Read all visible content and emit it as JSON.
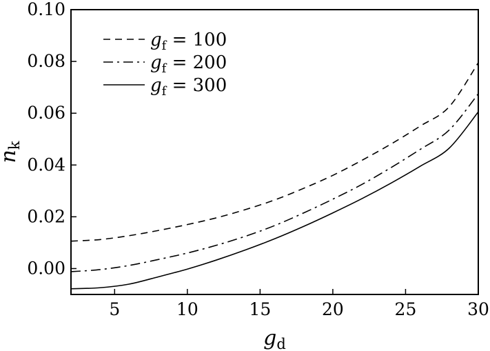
{
  "chart_data": {
    "type": "line",
    "title": "",
    "xlabel": {
      "base": "g",
      "sub": "d"
    },
    "ylabel": {
      "base": "n",
      "sub": "k"
    },
    "xlim": [
      2,
      30
    ],
    "ylim": [
      -0.01,
      0.1
    ],
    "xticks": [
      5,
      10,
      15,
      20,
      25,
      30
    ],
    "xtick_labels": [
      "5",
      "10",
      "15",
      "20",
      "25",
      "30"
    ],
    "yticks": [
      0.0,
      0.02,
      0.04,
      0.06,
      0.08,
      0.1
    ],
    "ytick_labels": [
      "0.00",
      "0.02",
      "0.04",
      "0.06",
      "0.08",
      "0.10"
    ],
    "grid": false,
    "legend_position": "top-left",
    "series": [
      {
        "name": "g_f = 100",
        "label": {
          "base": "g",
          "sub": "f",
          "rest": " = 100"
        },
        "line_style": "dashed",
        "x": [
          2,
          4,
          6,
          8,
          10,
          12,
          14,
          16,
          18,
          20,
          22,
          24,
          26,
          28,
          30
        ],
        "y": [
          0.0106,
          0.0112,
          0.0127,
          0.0147,
          0.017,
          0.0196,
          0.0228,
          0.0265,
          0.031,
          0.036,
          0.0418,
          0.0481,
          0.055,
          0.0625,
          0.0795
        ]
      },
      {
        "name": "g_f = 200",
        "label": {
          "base": "g",
          "sub": "f",
          "rest": " = 200"
        },
        "line_style": "dashdot",
        "x": [
          2,
          4,
          6,
          8,
          10,
          12,
          14,
          16,
          18,
          20,
          22,
          24,
          26,
          28,
          30
        ],
        "y": [
          -0.0012,
          -0.0004,
          0.0012,
          0.0035,
          0.006,
          0.009,
          0.0125,
          0.0166,
          0.0215,
          0.0268,
          0.0325,
          0.039,
          0.046,
          0.0535,
          0.0675
        ]
      },
      {
        "name": "g_f = 300",
        "label": {
          "base": "g",
          "sub": "f",
          "rest": " = 300"
        },
        "line_style": "solid",
        "x": [
          2,
          4,
          6,
          8,
          10,
          12,
          14,
          16,
          18,
          20,
          22,
          24,
          26,
          28,
          30
        ],
        "y": [
          -0.0078,
          -0.0074,
          -0.006,
          -0.0032,
          -0.0002,
          0.0033,
          0.0072,
          0.0115,
          0.0163,
          0.0215,
          0.027,
          0.033,
          0.0395,
          0.0465,
          0.0605
        ]
      }
    ]
  }
}
